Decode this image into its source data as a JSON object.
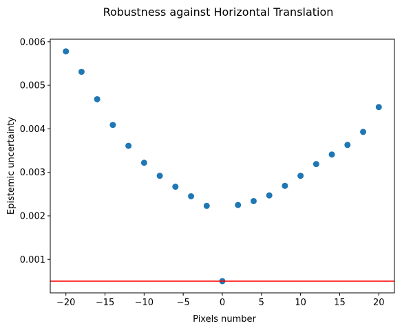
{
  "chart_data": {
    "type": "scatter",
    "title": "Robustness against Horizontal Translation",
    "xlabel": "Pixels number",
    "ylabel": "Epistemic uncertainty",
    "xlim": [
      -22,
      22
    ],
    "ylim": [
      0.00023,
      0.00606
    ],
    "x_ticks": [
      -20,
      -15,
      -10,
      -5,
      0,
      5,
      10,
      15,
      20
    ],
    "x_tick_labels": [
      "−20",
      "−15",
      "−10",
      "−5",
      "0",
      "5",
      "10",
      "15",
      "20"
    ],
    "y_ticks": [
      0.001,
      0.002,
      0.003,
      0.004,
      0.005,
      0.006
    ],
    "y_tick_labels": [
      "0.001",
      "0.002",
      "0.003",
      "0.004",
      "0.005",
      "0.006"
    ],
    "grid": false,
    "legend": "none",
    "series": [
      {
        "color": "#1f77b4",
        "x": [
          -20,
          -18,
          -16,
          -14,
          -12,
          -10,
          -8,
          -6,
          -4,
          -2,
          0,
          2,
          4,
          6,
          8,
          10,
          12,
          14,
          16,
          18,
          20
        ],
        "y": [
          0.00578,
          0.00531,
          0.00468,
          0.00409,
          0.00361,
          0.00322,
          0.00292,
          0.00267,
          0.00245,
          0.00223,
          0.0005,
          0.00225,
          0.00234,
          0.00247,
          0.00269,
          0.00292,
          0.00319,
          0.00341,
          0.00363,
          0.00393,
          0.0045
        ]
      }
    ],
    "reference_line": {
      "y": 0.0005,
      "color": "#ff0000"
    }
  }
}
